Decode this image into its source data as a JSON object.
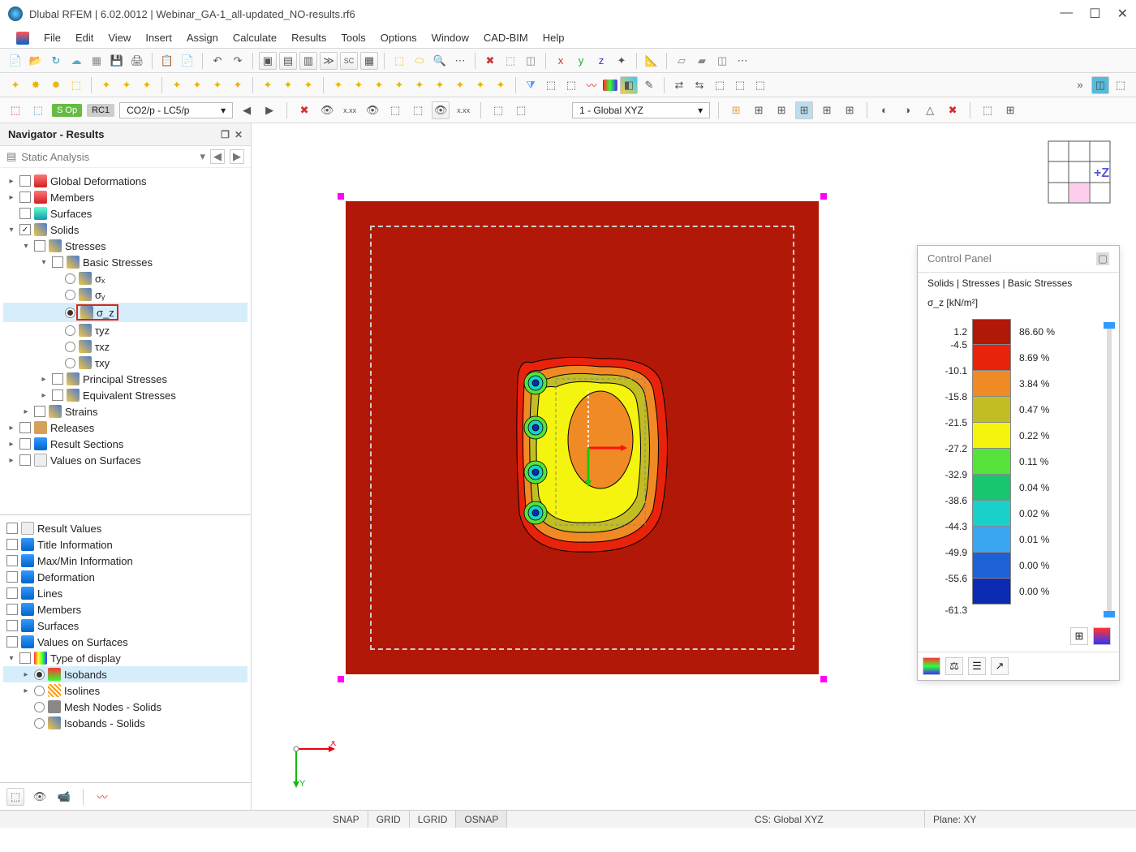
{
  "window": {
    "title": "Dlubal RFEM | 6.02.0012 | Webinar_GA-1_all-updated_NO-results.rf6"
  },
  "menu": [
    "File",
    "Edit",
    "View",
    "Insert",
    "Assign",
    "Calculate",
    "Results",
    "Tools",
    "Options",
    "Window",
    "CAD-BIM",
    "Help"
  ],
  "row3": {
    "chip1": "S Op",
    "chip2": "RC1",
    "combo": "CO2/p - LC5/p",
    "coordsys": "1 - Global XYZ"
  },
  "navigator": {
    "title": "Navigator - Results",
    "analysis": "Static Analysis",
    "tree": {
      "globalDef": "Global Deformations",
      "members": "Members",
      "surfaces": "Surfaces",
      "solids": "Solids",
      "stresses": "Stresses",
      "basicStresses": "Basic Stresses",
      "sx": "σₓ",
      "sy": "σᵧ",
      "sz": "σ_z",
      "tyz": "τyz",
      "txz": "τxz",
      "txy": "τxy",
      "principal": "Principal Stresses",
      "equiv": "Equivalent Stresses",
      "strains": "Strains",
      "releases": "Releases",
      "resultSections": "Result Sections",
      "valuesOnSurf": "Values on Surfaces"
    },
    "lower": {
      "resultValues": "Result Values",
      "titleInfo": "Title Information",
      "maxmin": "Max/Min Information",
      "deformation": "Deformation",
      "lines": "Lines",
      "members2": "Members",
      "surfaces2": "Surfaces",
      "valuesOnSurf2": "Values on Surfaces",
      "typeDisplay": "Type of display",
      "isobands": "Isobands",
      "isolines": "Isolines",
      "meshNodes": "Mesh Nodes - Solids",
      "isobandsSolids": "Isobands - Solids"
    }
  },
  "controlPanel": {
    "title": "Control Panel",
    "subtitle1": "Solids | Stresses | Basic Stresses",
    "subtitle2": "σ_z [kN/m²]",
    "legend": [
      {
        "v": "1.2",
        "c": "#b21807",
        "p": "86.60 %"
      },
      {
        "v": "-4.5",
        "c": "#e8220b",
        "p": "8.69 %"
      },
      {
        "v": "-10.1",
        "c": "#f08a24",
        "p": "3.84 %"
      },
      {
        "v": "-15.8",
        "c": "#c2bd23",
        "p": "0.47 %"
      },
      {
        "v": "-21.5",
        "c": "#f4f40e",
        "p": "0.22 %"
      },
      {
        "v": "-27.2",
        "c": "#56e23b",
        "p": "0.11 %"
      },
      {
        "v": "-32.9",
        "c": "#17c66e",
        "p": "0.04 %"
      },
      {
        "v": "-38.6",
        "c": "#1ad1c9",
        "p": "0.02 %"
      },
      {
        "v": "-44.3",
        "c": "#3aa6f2",
        "p": "0.01 %"
      },
      {
        "v": "-49.9",
        "c": "#1e61d6",
        "p": "0.00 %"
      },
      {
        "v": "-55.6",
        "c": "#0b2bb3",
        "p": "0.00 %"
      },
      {
        "v": "-61.3",
        "c": "",
        "p": ""
      }
    ]
  },
  "status": {
    "snap": "SNAP",
    "grid": "GRID",
    "lgrid": "LGRID",
    "osnap": "OSNAP",
    "cs": "CS: Global XYZ",
    "plane": "Plane: XY"
  },
  "axis": {
    "x": "X",
    "y": "Y",
    "z": "+Z"
  }
}
